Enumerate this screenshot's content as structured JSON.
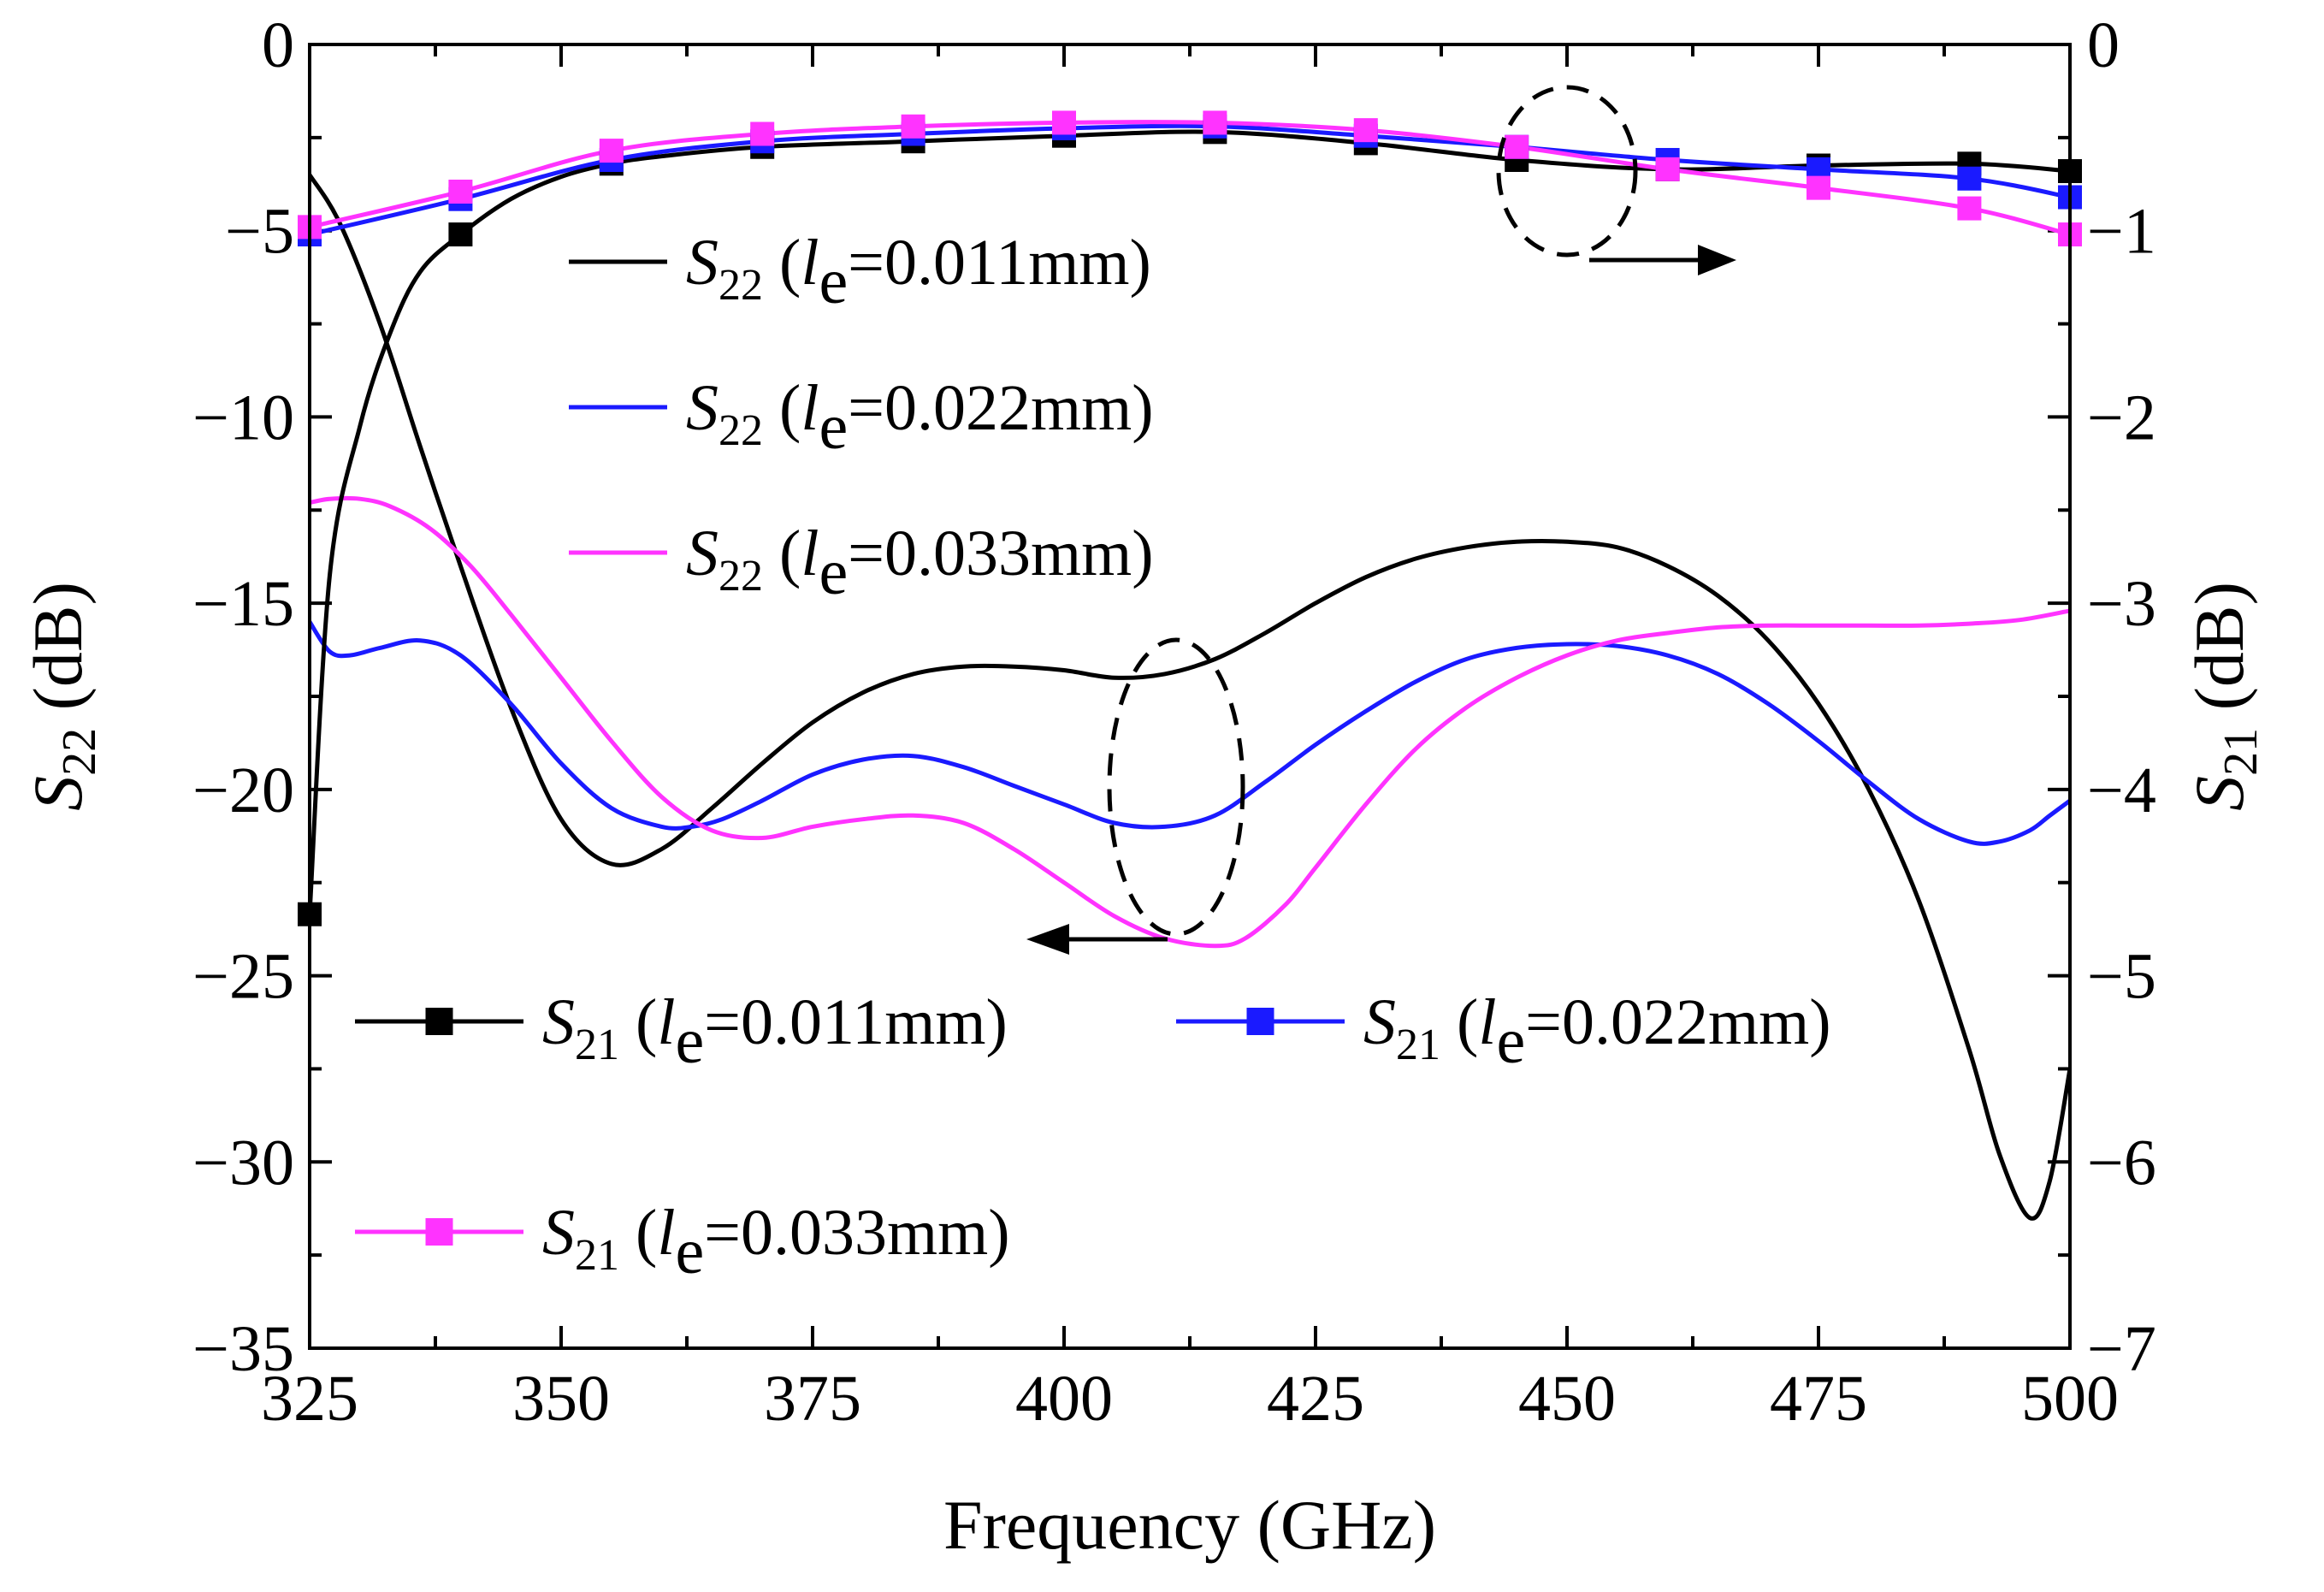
{
  "chart_data": {
    "type": "line",
    "title": "",
    "xlabel": "Frequency (GHz)",
    "ylabel_left": {
      "symbol": "S",
      "sub": "22",
      "unit": " (dB)"
    },
    "ylabel_right": {
      "symbol": "S",
      "sub": "21",
      "unit": " (dB)"
    },
    "xlim": [
      325,
      500
    ],
    "ylim_left": [
      -35,
      0
    ],
    "ylim_right": [
      -7,
      0
    ],
    "xticks": [
      {
        "v": 325,
        "label": "325"
      },
      {
        "v": 350,
        "label": "350"
      },
      {
        "v": 375,
        "label": "375"
      },
      {
        "v": 400,
        "label": "400"
      },
      {
        "v": 425,
        "label": "425"
      },
      {
        "v": 450,
        "label": "450"
      },
      {
        "v": 475,
        "label": "475"
      },
      {
        "v": 500,
        "label": "500"
      }
    ],
    "yticks_left": [
      {
        "v": 0,
        "label": "0"
      },
      {
        "v": -5,
        "label": "−5"
      },
      {
        "v": -10,
        "label": "−10"
      },
      {
        "v": -15,
        "label": "−15"
      },
      {
        "v": -20,
        "label": "−20"
      },
      {
        "v": -25,
        "label": "−25"
      },
      {
        "v": -30,
        "label": "−30"
      },
      {
        "v": -35,
        "label": "−35"
      }
    ],
    "yticks_right": [
      {
        "v": 0,
        "label": "0"
      },
      {
        "v": -1,
        "label": "−1"
      },
      {
        "v": -2,
        "label": "−2"
      },
      {
        "v": -3,
        "label": "−3"
      },
      {
        "v": -4,
        "label": "−4"
      },
      {
        "v": -5,
        "label": "−5"
      },
      {
        "v": -6,
        "label": "−6"
      },
      {
        "v": -7,
        "label": "−7"
      }
    ],
    "series_s22": [
      {
        "name": "S22 (le=0.011mm)",
        "color": "#000000",
        "x": [
          325,
          328,
          332,
          336,
          340,
          345,
          350,
          355,
          360,
          365,
          370,
          375,
          380,
          385,
          390,
          395,
          400,
          405,
          410,
          415,
          420,
          425,
          430,
          435,
          440,
          445,
          450,
          455,
          460,
          465,
          470,
          475,
          480,
          485,
          490,
          493,
          496,
          498,
          500
        ],
        "y": [
          -3.5,
          -4.8,
          -7.5,
          -10.8,
          -14.0,
          -17.8,
          -20.8,
          -22.0,
          -21.6,
          -20.5,
          -19.3,
          -18.2,
          -17.4,
          -16.9,
          -16.7,
          -16.7,
          -16.8,
          -17.0,
          -16.9,
          -16.5,
          -15.8,
          -15.0,
          -14.3,
          -13.8,
          -13.5,
          -13.35,
          -13.35,
          -13.5,
          -14.0,
          -14.8,
          -16.0,
          -17.7,
          -20.0,
          -23.0,
          -27.0,
          -29.8,
          -31.5,
          -30.5,
          -27.5
        ]
      },
      {
        "name": "S22 (le=0.022mm)",
        "color": "#1a1aff",
        "x": [
          325,
          327,
          329,
          332,
          336,
          340,
          345,
          350,
          355,
          360,
          363,
          366,
          370,
          375,
          380,
          385,
          390,
          395,
          400,
          405,
          410,
          415,
          420,
          425,
          430,
          435,
          440,
          445,
          450,
          455,
          460,
          465,
          470,
          475,
          480,
          485,
          490,
          493,
          496,
          498,
          500
        ],
        "y": [
          -15.5,
          -16.3,
          -16.4,
          -16.2,
          -16.0,
          -16.4,
          -17.7,
          -19.3,
          -20.5,
          -21.0,
          -21.0,
          -20.8,
          -20.3,
          -19.6,
          -19.2,
          -19.1,
          -19.4,
          -19.9,
          -20.4,
          -20.9,
          -21.0,
          -20.7,
          -19.8,
          -18.8,
          -17.9,
          -17.1,
          -16.5,
          -16.2,
          -16.1,
          -16.15,
          -16.4,
          -16.9,
          -17.7,
          -18.7,
          -19.8,
          -20.8,
          -21.4,
          -21.4,
          -21.1,
          -20.7,
          -20.3
        ]
      },
      {
        "name": "S22 (le=0.033mm)",
        "color": "#ff33ff",
        "x": [
          325,
          327,
          330,
          333,
          337,
          341,
          345,
          350,
          355,
          360,
          365,
          370,
          375,
          380,
          385,
          390,
          395,
          400,
          405,
          410,
          415,
          418,
          422,
          425,
          430,
          435,
          440,
          445,
          450,
          455,
          460,
          465,
          470,
          475,
          480,
          485,
          490,
          495,
          500
        ],
        "y": [
          -12.3,
          -12.2,
          -12.2,
          -12.4,
          -13.0,
          -14.0,
          -15.3,
          -17.0,
          -18.7,
          -20.2,
          -21.1,
          -21.3,
          -21.0,
          -20.8,
          -20.7,
          -20.9,
          -21.6,
          -22.5,
          -23.4,
          -24.0,
          -24.2,
          -24.0,
          -23.1,
          -22.1,
          -20.4,
          -18.9,
          -17.8,
          -17.0,
          -16.4,
          -16.0,
          -15.8,
          -15.65,
          -15.6,
          -15.6,
          -15.6,
          -15.6,
          -15.55,
          -15.45,
          -15.2
        ]
      }
    ],
    "series_s21": [
      {
        "name": "S21 (le=0.011mm)",
        "color": "#000000",
        "marker": "square",
        "x": [
          325,
          340,
          355,
          370,
          385,
          400,
          415,
          430,
          445,
          460,
          475,
          490,
          500
        ],
        "y": [
          -4.67,
          -1.02,
          -0.64,
          -0.55,
          -0.52,
          -0.49,
          -0.47,
          -0.53,
          -0.62,
          -0.67,
          -0.65,
          -0.64,
          -0.68
        ],
        "x_line": [
          325,
          327,
          330,
          333,
          336,
          340,
          345,
          350,
          355,
          360,
          370,
          385,
          400,
          415,
          430,
          445,
          460,
          475,
          490,
          500
        ],
        "y_line": [
          -4.67,
          -2.85,
          -2.05,
          -1.55,
          -1.22,
          -1.02,
          -0.83,
          -0.71,
          -0.64,
          -0.6,
          -0.55,
          -0.52,
          -0.49,
          -0.47,
          -0.53,
          -0.62,
          -0.67,
          -0.65,
          -0.64,
          -0.68
        ]
      },
      {
        "name": "S21 (le=0.022mm)",
        "color": "#1a1aff",
        "marker": "square",
        "x": [
          325,
          340,
          355,
          370,
          385,
          400,
          415,
          430,
          445,
          460,
          475,
          490,
          500
        ],
        "y": [
          -1.02,
          -0.83,
          -0.62,
          -0.52,
          -0.48,
          -0.45,
          -0.44,
          -0.49,
          -0.55,
          -0.62,
          -0.67,
          -0.72,
          -0.82
        ]
      },
      {
        "name": "S21 (le=0.033mm)",
        "color": "#ff33ff",
        "marker": "square",
        "x": [
          325,
          340,
          355,
          370,
          385,
          400,
          415,
          430,
          445,
          460,
          475,
          490,
          500
        ],
        "y": [
          -0.98,
          -0.79,
          -0.57,
          -0.48,
          -0.44,
          -0.42,
          -0.42,
          -0.46,
          -0.55,
          -0.67,
          -0.77,
          -0.88,
          -1.02
        ]
      }
    ],
    "legend": [
      {
        "symbol": "S",
        "sub": "22",
        "open": " (",
        "l": "l",
        "e": "e",
        "val": "=0.011mm)",
        "color": "#000000",
        "marker": false
      },
      {
        "symbol": "S",
        "sub": "22",
        "open": " (",
        "l": "l",
        "e": "e",
        "val": "=0.022mm)",
        "color": "#1a1aff",
        "marker": false
      },
      {
        "symbol": "S",
        "sub": "22",
        "open": " (",
        "l": "l",
        "e": "e",
        "val": "=0.033mm)",
        "color": "#ff33ff",
        "marker": false
      },
      {
        "symbol": "S",
        "sub": "21",
        "open": " (",
        "l": "l",
        "e": "e",
        "val": "=0.011mm)",
        "color": "#000000",
        "marker": true
      },
      {
        "symbol": "S",
        "sub": "21",
        "open": " (",
        "l": "l",
        "e": "e",
        "val": "=0.022mm)",
        "color": "#1a1aff",
        "marker": true
      },
      {
        "symbol": "S",
        "sub": "21",
        "open": " (",
        "l": "l",
        "e": "e",
        "val": "=0.033mm)",
        "color": "#ff33ff",
        "marker": true
      }
    ],
    "annotations": [
      {
        "name": "s21-group-ellipse",
        "points_to": "right-axis"
      },
      {
        "name": "s22-group-ellipse",
        "points_to": "left-axis"
      }
    ]
  }
}
